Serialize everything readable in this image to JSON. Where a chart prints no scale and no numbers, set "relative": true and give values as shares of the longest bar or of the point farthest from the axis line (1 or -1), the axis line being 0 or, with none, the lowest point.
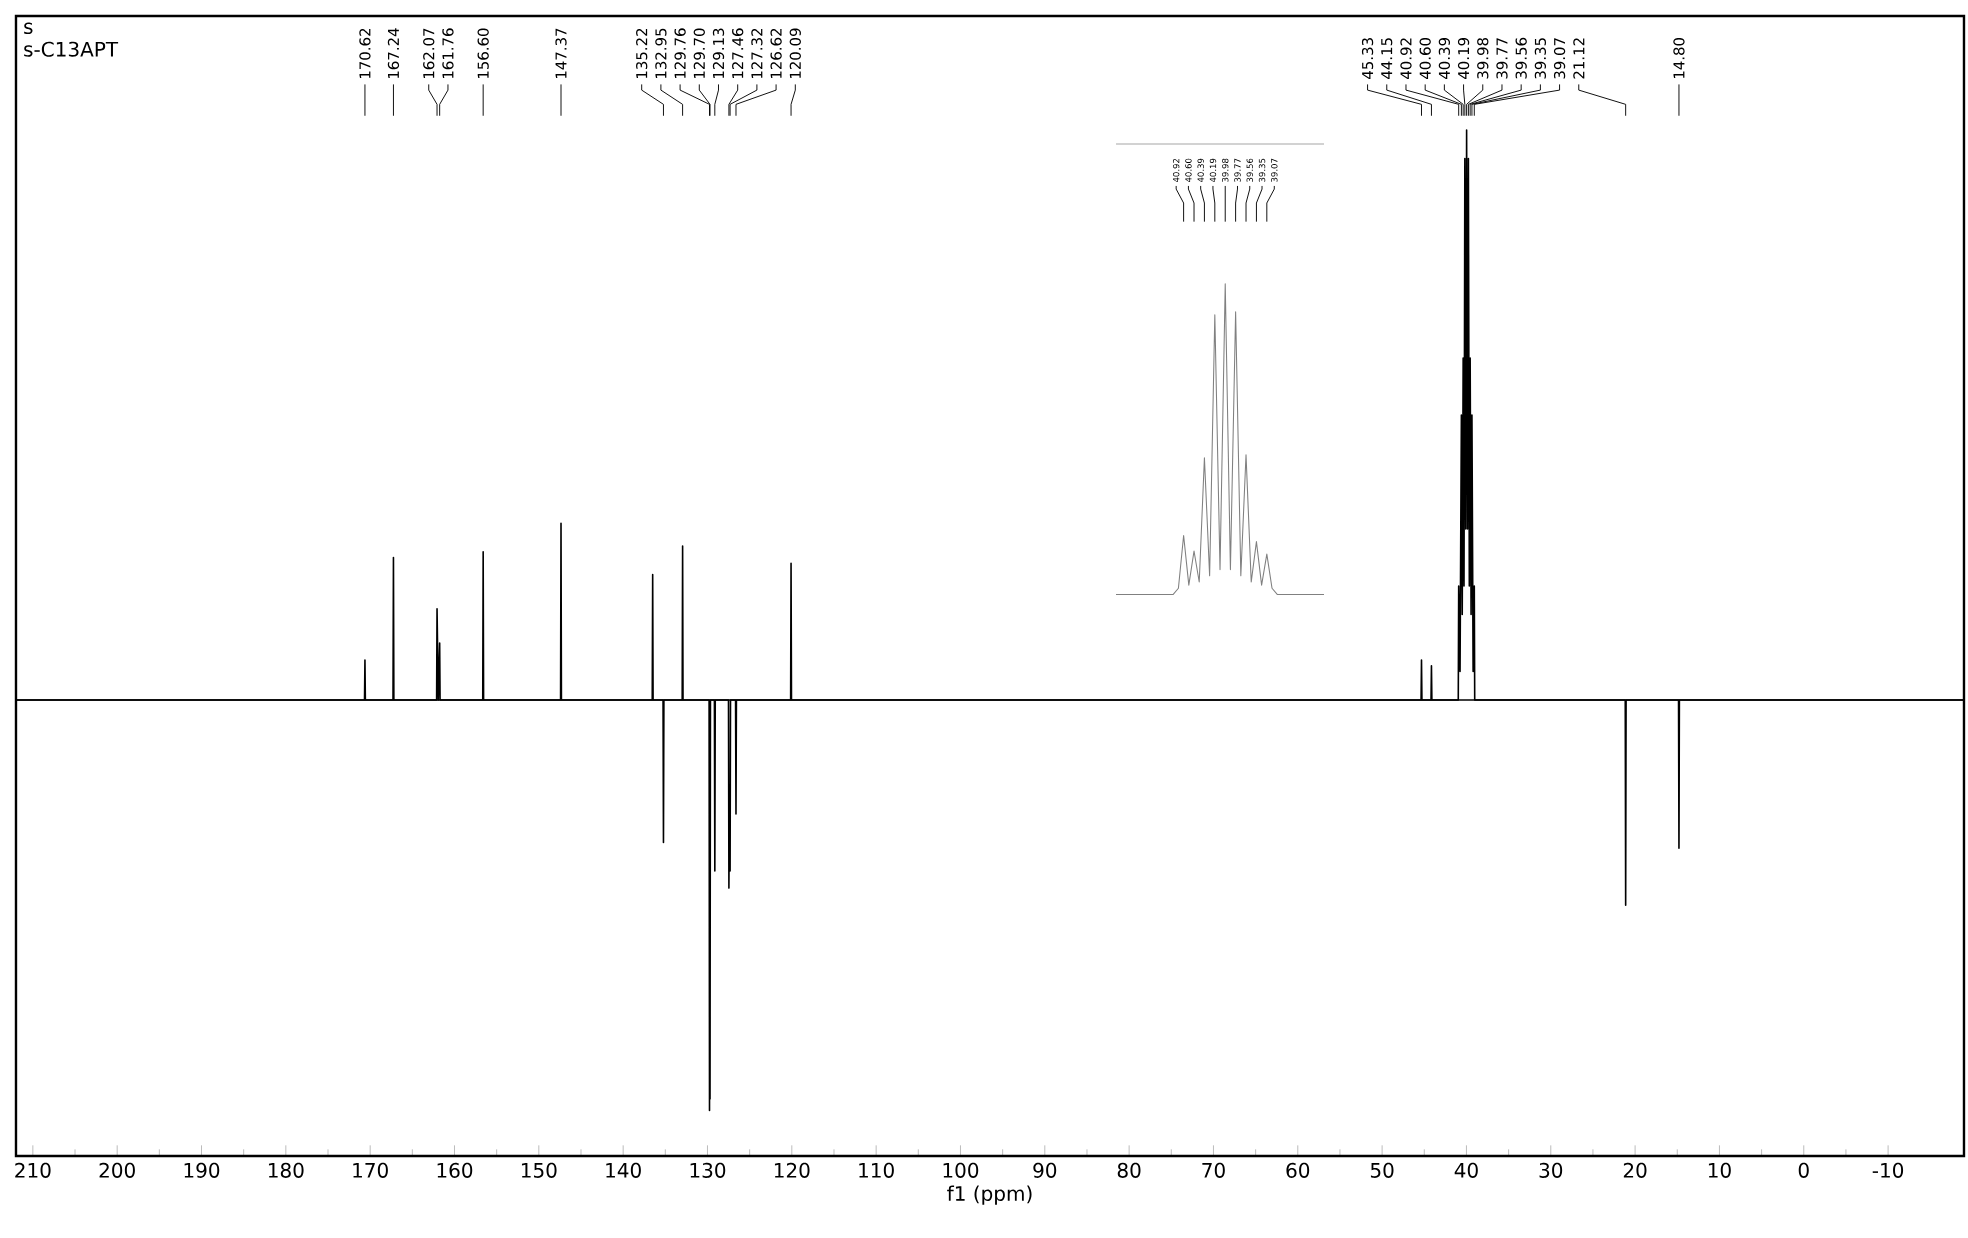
{
  "chart_data": [
    {
      "type": "line",
      "title": "s",
      "subtitle": "s-C13APT",
      "xlabel": "f1 (ppm)",
      "relative": true,
      "color": "#000000",
      "xlim": [
        212,
        -19
      ],
      "ref_lines": [
        {
          "axis": "y",
          "value": 0
        }
      ],
      "xticks": [
        210,
        200,
        190,
        180,
        170,
        160,
        150,
        140,
        130,
        120,
        110,
        100,
        90,
        80,
        70,
        60,
        50,
        40,
        30,
        20,
        10,
        0,
        -10
      ],
      "x": [
        212,
        170.67,
        170.62,
        170.57,
        167.29,
        167.24,
        167.19,
        162.12,
        162.07,
        161.92,
        161.76,
        161.71,
        156.65,
        156.6,
        156.55,
        147.42,
        147.37,
        147.32,
        136.55,
        136.5,
        136.45,
        135.27,
        135.22,
        135.17,
        133.0,
        132.95,
        132.9,
        129.81,
        129.76,
        129.73,
        129.7,
        129.65,
        129.18,
        129.13,
        129.08,
        127.51,
        127.46,
        127.39,
        127.32,
        127.27,
        126.67,
        126.62,
        126.57,
        120.14,
        120.09,
        120.04,
        45.38,
        45.33,
        45.28,
        44.2,
        44.15,
        44.1,
        40.97,
        40.92,
        40.76,
        40.6,
        40.5,
        40.39,
        40.29,
        40.19,
        40.08,
        39.98,
        39.87,
        39.77,
        39.66,
        39.56,
        39.45,
        39.35,
        39.21,
        39.07,
        39.02,
        21.17,
        21.12,
        21.07,
        14.85,
        14.8,
        14.75,
        -19
      ],
      "values": [
        0,
        0,
        0.07,
        0,
        0,
        0.25,
        0,
        0,
        0.16,
        0,
        0.1,
        0,
        0,
        0.26,
        0,
        0,
        0.31,
        0,
        0,
        0.22,
        0,
        0,
        -0.25,
        0,
        0,
        0.27,
        0,
        0,
        -0.72,
        -0.4,
        -0.7,
        0,
        0,
        -0.3,
        0,
        0,
        -0.33,
        -0.15,
        -0.3,
        0,
        0,
        -0.2,
        0,
        0,
        0.24,
        0,
        0,
        0.07,
        0,
        0,
        0.06,
        0,
        0,
        0.2,
        0.05,
        0.5,
        0.15,
        0.6,
        0.2,
        0.95,
        0.3,
        1,
        0.3,
        0.95,
        0.2,
        0.6,
        0.15,
        0.5,
        0.05,
        0.2,
        0,
        0,
        -0.36,
        0,
        0,
        -0.26,
        0,
        0
      ],
      "annotations": [
        {
          "text": "170.62",
          "x": 170.62
        },
        {
          "text": "167.24",
          "x": 167.24
        },
        {
          "text": "162.07",
          "x": 162.07
        },
        {
          "text": "161.76",
          "x": 161.76
        },
        {
          "text": "156.60",
          "x": 156.6
        },
        {
          "text": "147.37",
          "x": 147.37
        },
        {
          "text": "135.22",
          "x": 135.22
        },
        {
          "text": "132.95",
          "x": 132.95
        },
        {
          "text": "129.76",
          "x": 129.76
        },
        {
          "text": "129.70",
          "x": 129.7
        },
        {
          "text": "129.13",
          "x": 129.13
        },
        {
          "text": "127.46",
          "x": 127.46
        },
        {
          "text": "127.32",
          "x": 127.32
        },
        {
          "text": "126.62",
          "x": 126.62
        },
        {
          "text": "120.09",
          "x": 120.09
        },
        {
          "text": "45.33",
          "x": 45.33
        },
        {
          "text": "44.15",
          "x": 44.15
        },
        {
          "text": "40.92",
          "x": 40.92
        },
        {
          "text": "40.60",
          "x": 40.6
        },
        {
          "text": "40.39",
          "x": 40.39
        },
        {
          "text": "40.19",
          "x": 40.19
        },
        {
          "text": "39.98",
          "x": 39.98
        },
        {
          "text": "39.77",
          "x": 39.77
        },
        {
          "text": "39.56",
          "x": 39.56
        },
        {
          "text": "39.35",
          "x": 39.35
        },
        {
          "text": "39.07",
          "x": 39.07
        },
        {
          "text": "21.12",
          "x": 21.12
        },
        {
          "text": "14.80",
          "x": 14.8
        }
      ]
    },
    {
      "type": "line",
      "relative": true,
      "color": "#808080",
      "categories": [
        null,
        null,
        null,
        null,
        null,
        null,
        null,
        null,
        null,
        null,
        null,
        null,
        null,
        null,
        null,
        null,
        null,
        null,
        null,
        null,
        null,
        null,
        null,
        null,
        null,
        null,
        null,
        null,
        null,
        null,
        null,
        null,
        null,
        null,
        null,
        null,
        null,
        null,
        null,
        null,
        null
      ],
      "values": [
        0,
        0,
        0,
        0,
        0,
        0,
        0,
        0,
        0,
        0,
        0,
        0,
        0.02,
        0.19,
        0.03,
        0.14,
        0.04,
        0.44,
        0.06,
        0.9,
        0.08,
        1,
        0.08,
        0.91,
        0.06,
        0.45,
        0.04,
        0.17,
        0.03,
        0.13,
        0.02,
        0,
        0,
        0,
        0,
        0,
        0,
        0,
        0,
        0,
        0
      ],
      "annotations": [
        "40.92",
        "40.60",
        "40.39",
        "40.19",
        "39.98",
        "39.77",
        "39.56",
        "39.35",
        "39.07"
      ]
    }
  ]
}
